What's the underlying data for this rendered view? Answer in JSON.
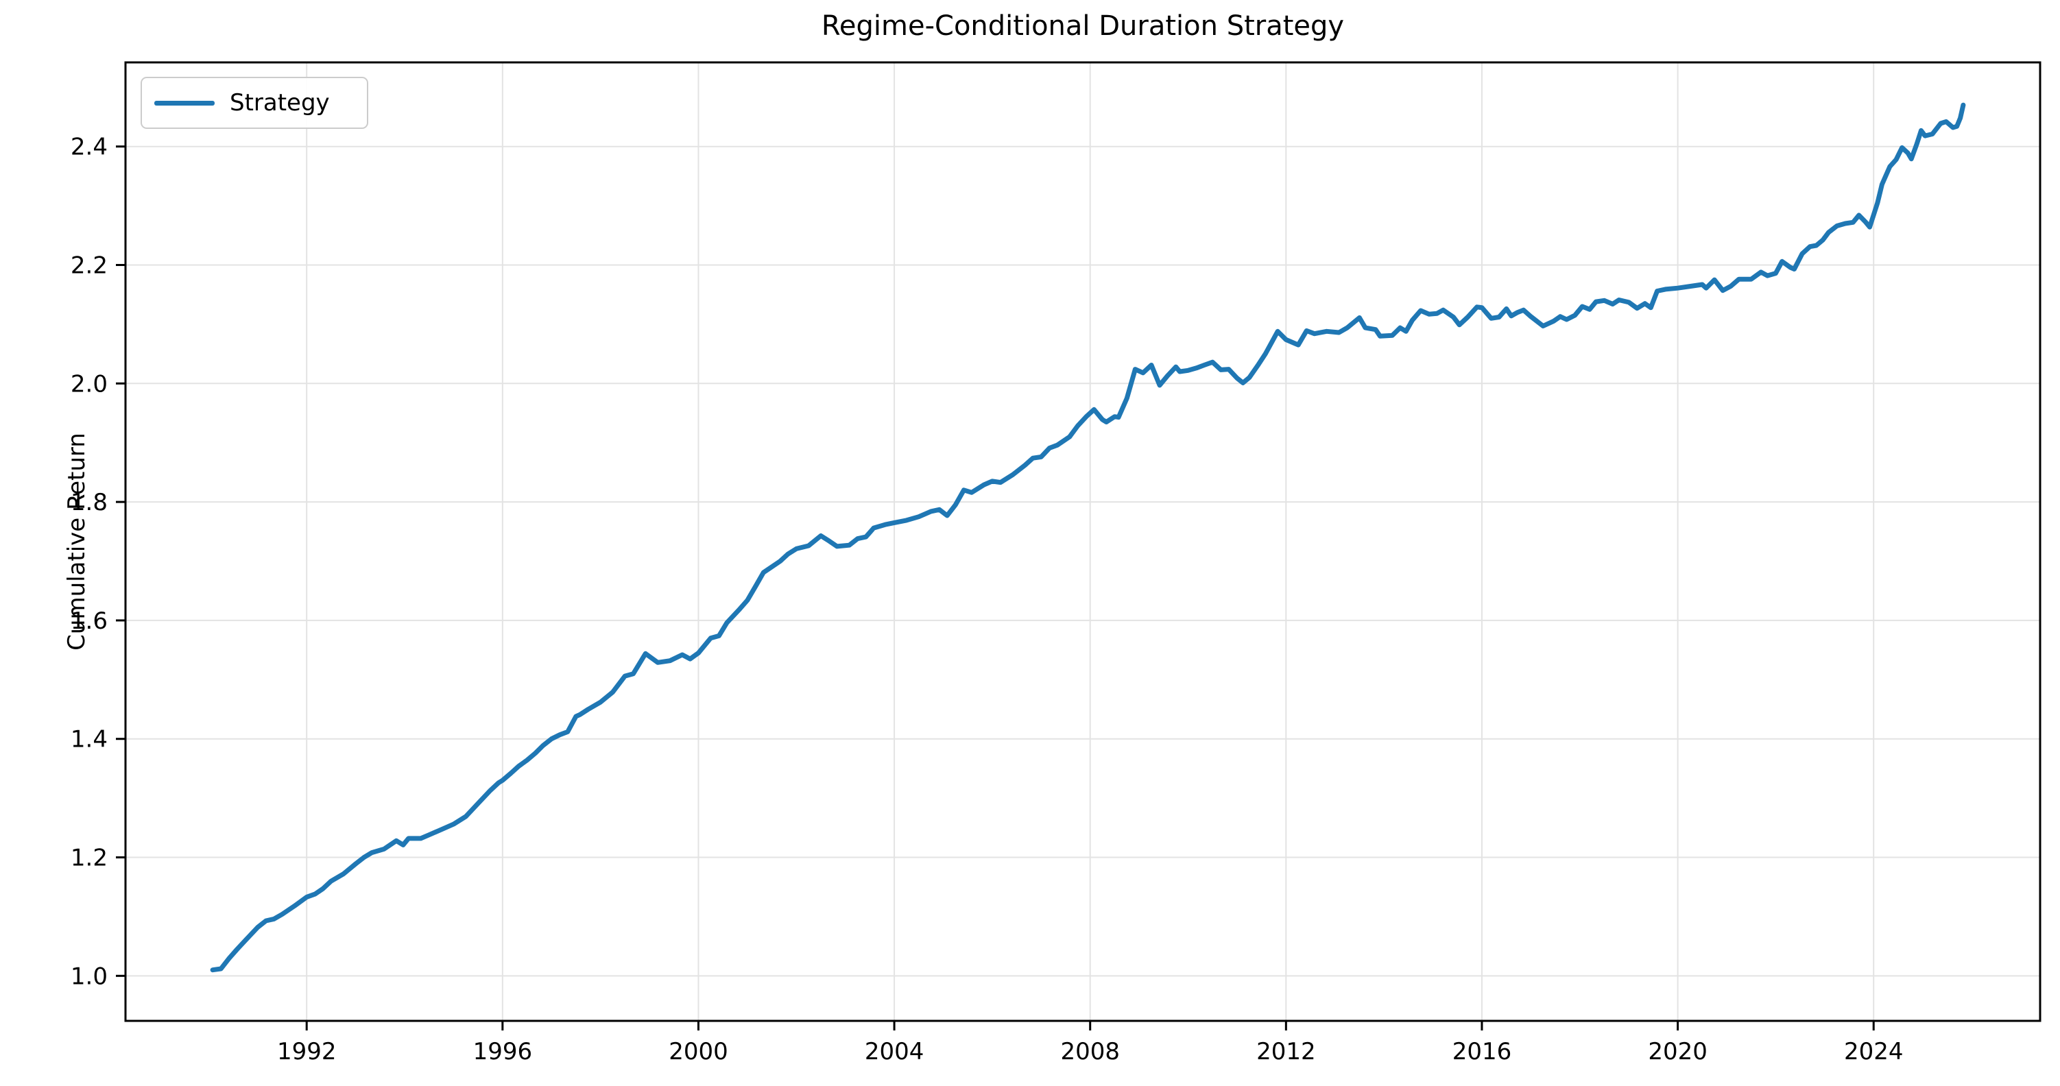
{
  "figure": {
    "title": "Regime-Conditional Duration Strategy",
    "ylabel": "Cumulative Return"
  },
  "legend": {
    "items": [
      {
        "label": "Strategy",
        "color": "#1f77b4"
      }
    ]
  },
  "style": {
    "line_color": "#1f77b4",
    "grid_color": "#e3e3e3",
    "spine_color": "#000000",
    "tick_color": "#000000",
    "background": "#ffffff"
  },
  "chart_data": {
    "type": "line",
    "title": "Regime-Conditional Duration Strategy",
    "xlabel": "",
    "ylabel": "Cumulative Return",
    "xlim": [
      1988.3,
      2027.4
    ],
    "ylim": [
      0.924,
      2.542
    ],
    "x_ticks": [
      1992,
      1996,
      2000,
      2004,
      2008,
      2012,
      2016,
      2020,
      2024
    ],
    "y_ticks": [
      1.0,
      1.2,
      1.4,
      1.6,
      1.8,
      2.0,
      2.2,
      2.4
    ],
    "grid": true,
    "legend_position": "upper left",
    "series": [
      {
        "name": "Strategy",
        "color": "#1f77b4",
        "points": [
          [
            1990.08,
            1.01
          ],
          [
            1990.25,
            1.012
          ],
          [
            1990.42,
            1.03
          ],
          [
            1990.58,
            1.045
          ],
          [
            1990.75,
            1.06
          ],
          [
            1991.0,
            1.082
          ],
          [
            1991.17,
            1.093
          ],
          [
            1991.33,
            1.096
          ],
          [
            1991.5,
            1.104
          ],
          [
            1991.75,
            1.118
          ],
          [
            1992.0,
            1.133
          ],
          [
            1992.17,
            1.138
          ],
          [
            1992.33,
            1.147
          ],
          [
            1992.5,
            1.16
          ],
          [
            1992.75,
            1.172
          ],
          [
            1993.0,
            1.189
          ],
          [
            1993.17,
            1.2
          ],
          [
            1993.33,
            1.208
          ],
          [
            1993.58,
            1.214
          ],
          [
            1993.83,
            1.228
          ],
          [
            1993.97,
            1.221
          ],
          [
            1994.08,
            1.232
          ],
          [
            1994.33,
            1.232
          ],
          [
            1994.5,
            1.238
          ],
          [
            1994.75,
            1.247
          ],
          [
            1995.0,
            1.256
          ],
          [
            1995.25,
            1.269
          ],
          [
            1995.5,
            1.291
          ],
          [
            1995.75,
            1.313
          ],
          [
            1995.92,
            1.326
          ],
          [
            1996.0,
            1.33
          ],
          [
            1996.17,
            1.342
          ],
          [
            1996.33,
            1.354
          ],
          [
            1996.5,
            1.364
          ],
          [
            1996.67,
            1.376
          ],
          [
            1996.83,
            1.389
          ],
          [
            1997.0,
            1.4
          ],
          [
            1997.17,
            1.407
          ],
          [
            1997.33,
            1.412
          ],
          [
            1997.5,
            1.438
          ],
          [
            1997.58,
            1.441
          ],
          [
            1997.75,
            1.45
          ],
          [
            1998.0,
            1.462
          ],
          [
            1998.25,
            1.479
          ],
          [
            1998.5,
            1.506
          ],
          [
            1998.67,
            1.51
          ],
          [
            1998.92,
            1.544
          ],
          [
            1999.17,
            1.529
          ],
          [
            1999.42,
            1.532
          ],
          [
            1999.67,
            1.542
          ],
          [
            1999.83,
            1.535
          ],
          [
            2000.0,
            1.545
          ],
          [
            2000.25,
            1.57
          ],
          [
            2000.42,
            1.574
          ],
          [
            2000.58,
            1.596
          ],
          [
            2000.83,
            1.618
          ],
          [
            2001.0,
            1.634
          ],
          [
            2001.17,
            1.658
          ],
          [
            2001.33,
            1.681
          ],
          [
            2001.42,
            1.686
          ],
          [
            2001.67,
            1.7
          ],
          [
            2001.83,
            1.712
          ],
          [
            2002.0,
            1.721
          ],
          [
            2002.25,
            1.726
          ],
          [
            2002.5,
            1.743
          ],
          [
            2002.67,
            1.734
          ],
          [
            2002.83,
            1.725
          ],
          [
            2003.08,
            1.727
          ],
          [
            2003.25,
            1.738
          ],
          [
            2003.42,
            1.741
          ],
          [
            2003.58,
            1.756
          ],
          [
            2003.83,
            1.762
          ],
          [
            2004.0,
            1.765
          ],
          [
            2004.25,
            1.769
          ],
          [
            2004.5,
            1.775
          ],
          [
            2004.75,
            1.784
          ],
          [
            2004.92,
            1.787
          ],
          [
            2005.08,
            1.777
          ],
          [
            2005.25,
            1.795
          ],
          [
            2005.42,
            1.82
          ],
          [
            2005.58,
            1.816
          ],
          [
            2005.83,
            1.829
          ],
          [
            2006.0,
            1.835
          ],
          [
            2006.17,
            1.833
          ],
          [
            2006.42,
            1.846
          ],
          [
            2006.67,
            1.862
          ],
          [
            2006.83,
            1.874
          ],
          [
            2007.0,
            1.876
          ],
          [
            2007.17,
            1.891
          ],
          [
            2007.33,
            1.896
          ],
          [
            2007.58,
            1.91
          ],
          [
            2007.75,
            1.929
          ],
          [
            2007.92,
            1.944
          ],
          [
            2008.08,
            1.956
          ],
          [
            2008.25,
            1.939
          ],
          [
            2008.33,
            1.935
          ],
          [
            2008.5,
            1.944
          ],
          [
            2008.58,
            1.943
          ],
          [
            2008.75,
            1.975
          ],
          [
            2008.92,
            2.024
          ],
          [
            2009.08,
            2.018
          ],
          [
            2009.25,
            2.031
          ],
          [
            2009.42,
            1.997
          ],
          [
            2009.58,
            2.013
          ],
          [
            2009.75,
            2.028
          ],
          [
            2009.83,
            2.02
          ],
          [
            2010.0,
            2.022
          ],
          [
            2010.17,
            2.026
          ],
          [
            2010.33,
            2.031
          ],
          [
            2010.5,
            2.036
          ],
          [
            2010.67,
            2.023
          ],
          [
            2010.83,
            2.024
          ],
          [
            2011.0,
            2.009
          ],
          [
            2011.12,
            2.001
          ],
          [
            2011.25,
            2.01
          ],
          [
            2011.42,
            2.03
          ],
          [
            2011.58,
            2.05
          ],
          [
            2011.83,
            2.088
          ],
          [
            2012.0,
            2.074
          ],
          [
            2012.17,
            2.068
          ],
          [
            2012.25,
            2.065
          ],
          [
            2012.42,
            2.089
          ],
          [
            2012.58,
            2.084
          ],
          [
            2012.83,
            2.088
          ],
          [
            2013.08,
            2.086
          ],
          [
            2013.25,
            2.094
          ],
          [
            2013.5,
            2.111
          ],
          [
            2013.62,
            2.094
          ],
          [
            2013.83,
            2.091
          ],
          [
            2013.92,
            2.08
          ],
          [
            2014.17,
            2.081
          ],
          [
            2014.33,
            2.094
          ],
          [
            2014.45,
            2.088
          ],
          [
            2014.58,
            2.107
          ],
          [
            2014.75,
            2.123
          ],
          [
            2014.92,
            2.117
          ],
          [
            2015.08,
            2.118
          ],
          [
            2015.21,
            2.124
          ],
          [
            2015.42,
            2.112
          ],
          [
            2015.54,
            2.099
          ],
          [
            2015.71,
            2.112
          ],
          [
            2015.9,
            2.129
          ],
          [
            2016.0,
            2.128
          ],
          [
            2016.19,
            2.11
          ],
          [
            2016.35,
            2.112
          ],
          [
            2016.5,
            2.126
          ],
          [
            2016.6,
            2.114
          ],
          [
            2016.73,
            2.12
          ],
          [
            2016.85,
            2.124
          ],
          [
            2017.0,
            2.113
          ],
          [
            2017.25,
            2.097
          ],
          [
            2017.46,
            2.105
          ],
          [
            2017.6,
            2.113
          ],
          [
            2017.73,
            2.108
          ],
          [
            2017.9,
            2.115
          ],
          [
            2018.05,
            2.13
          ],
          [
            2018.2,
            2.125
          ],
          [
            2018.33,
            2.138
          ],
          [
            2018.5,
            2.14
          ],
          [
            2018.67,
            2.134
          ],
          [
            2018.8,
            2.141
          ],
          [
            2019.0,
            2.137
          ],
          [
            2019.17,
            2.127
          ],
          [
            2019.33,
            2.135
          ],
          [
            2019.45,
            2.128
          ],
          [
            2019.58,
            2.156
          ],
          [
            2019.75,
            2.159
          ],
          [
            2020.0,
            2.161
          ],
          [
            2020.25,
            2.164
          ],
          [
            2020.5,
            2.167
          ],
          [
            2020.58,
            2.161
          ],
          [
            2020.75,
            2.175
          ],
          [
            2020.92,
            2.157
          ],
          [
            2021.08,
            2.164
          ],
          [
            2021.25,
            2.176
          ],
          [
            2021.5,
            2.176
          ],
          [
            2021.7,
            2.188
          ],
          [
            2021.83,
            2.182
          ],
          [
            2022.0,
            2.186
          ],
          [
            2022.13,
            2.206
          ],
          [
            2022.3,
            2.196
          ],
          [
            2022.38,
            2.193
          ],
          [
            2022.54,
            2.219
          ],
          [
            2022.7,
            2.231
          ],
          [
            2022.83,
            2.233
          ],
          [
            2022.96,
            2.242
          ],
          [
            2023.08,
            2.255
          ],
          [
            2023.25,
            2.266
          ],
          [
            2023.42,
            2.27
          ],
          [
            2023.58,
            2.272
          ],
          [
            2023.7,
            2.284
          ],
          [
            2023.83,
            2.273
          ],
          [
            2023.92,
            2.264
          ],
          [
            2024.08,
            2.305
          ],
          [
            2024.17,
            2.336
          ],
          [
            2024.33,
            2.366
          ],
          [
            2024.46,
            2.378
          ],
          [
            2024.58,
            2.398
          ],
          [
            2024.7,
            2.389
          ],
          [
            2024.77,
            2.379
          ],
          [
            2024.88,
            2.404
          ],
          [
            2024.97,
            2.427
          ],
          [
            2025.05,
            2.418
          ],
          [
            2025.2,
            2.421
          ],
          [
            2025.37,
            2.439
          ],
          [
            2025.48,
            2.442
          ],
          [
            2025.62,
            2.432
          ],
          [
            2025.7,
            2.434
          ],
          [
            2025.77,
            2.448
          ],
          [
            2025.83,
            2.47
          ]
        ]
      }
    ]
  }
}
